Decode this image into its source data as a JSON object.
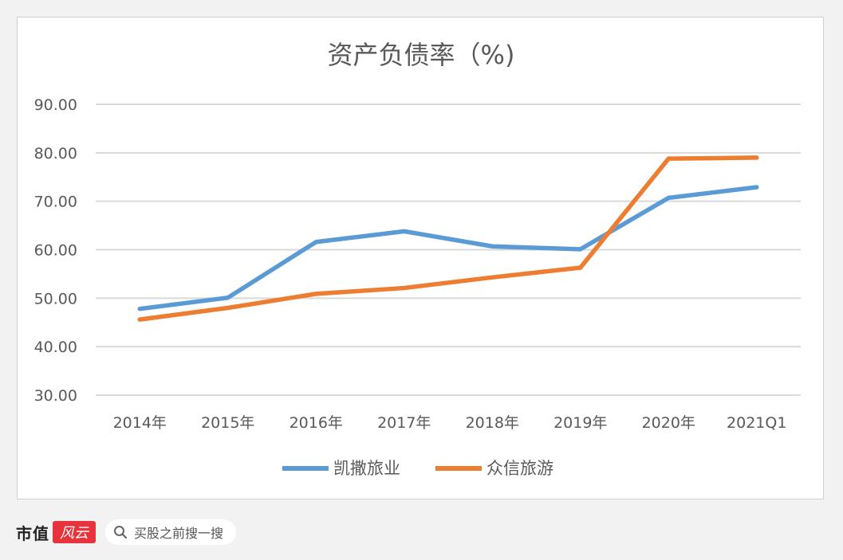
{
  "chart_data": {
    "type": "line",
    "title": "资产负债率（%)",
    "categories": [
      "2014年",
      "2015年",
      "2016年",
      "2017年",
      "2018年",
      "2019年",
      "2020年",
      "2021Q1"
    ],
    "yticks": [
      "30.00",
      "40.00",
      "50.00",
      "60.00",
      "70.00",
      "80.00",
      "90.00"
    ],
    "ylim": [
      30,
      90
    ],
    "grid": true,
    "legend_position": "bottom",
    "series": [
      {
        "name": "凯撒旅业",
        "color": "#5b9bd5",
        "values": [
          47.8,
          50.1,
          61.6,
          63.8,
          60.7,
          60.1,
          70.7,
          72.9
        ]
      },
      {
        "name": "众信旅游",
        "color": "#ed7d31",
        "values": [
          45.6,
          48.0,
          50.9,
          52.1,
          54.3,
          56.3,
          78.8,
          79.0
        ]
      }
    ]
  },
  "footer": {
    "brand": "市值",
    "brand_logo": "风云",
    "search_icon": "search-icon",
    "search_text": "买股之前搜一搜"
  }
}
